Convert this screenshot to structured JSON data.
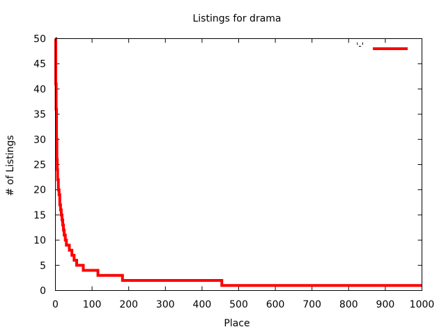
{
  "chart_data": {
    "type": "line",
    "title": "Listings for drama",
    "xlabel": "Place",
    "ylabel": "# of Listings",
    "xlim": [
      0,
      1000
    ],
    "ylim": [
      0,
      50
    ],
    "xticks": [
      0,
      100,
      200,
      300,
      400,
      500,
      600,
      700,
      800,
      900,
      1000
    ],
    "yticks": [
      0,
      5,
      10,
      15,
      20,
      25,
      30,
      35,
      40,
      45,
      50
    ],
    "grid": false,
    "legend_position": "top-right",
    "series": [
      {
        "name": "'-'",
        "color": "#ff0000",
        "points": [
          [
            0,
            50
          ],
          [
            1,
            41
          ],
          [
            2,
            36
          ],
          [
            3,
            30
          ],
          [
            4,
            26
          ],
          [
            5,
            24
          ],
          [
            6,
            22
          ],
          [
            8,
            20
          ],
          [
            10,
            19
          ],
          [
            12,
            17
          ],
          [
            14,
            16
          ],
          [
            16,
            15
          ],
          [
            18,
            14
          ],
          [
            20,
            13
          ],
          [
            22,
            12
          ],
          [
            24,
            11
          ],
          [
            27,
            10
          ],
          [
            30,
            9
          ],
          [
            36,
            9
          ],
          [
            38,
            8
          ],
          [
            44,
            8
          ],
          [
            45,
            7
          ],
          [
            50,
            7
          ],
          [
            51,
            6
          ],
          [
            57,
            6
          ],
          [
            58,
            5
          ],
          [
            75,
            5
          ],
          [
            76,
            4
          ],
          [
            115,
            4
          ],
          [
            116,
            3
          ],
          [
            182,
            3
          ],
          [
            183,
            2
          ],
          [
            453,
            2
          ],
          [
            454,
            1
          ],
          [
            1000,
            1
          ]
        ]
      }
    ]
  }
}
